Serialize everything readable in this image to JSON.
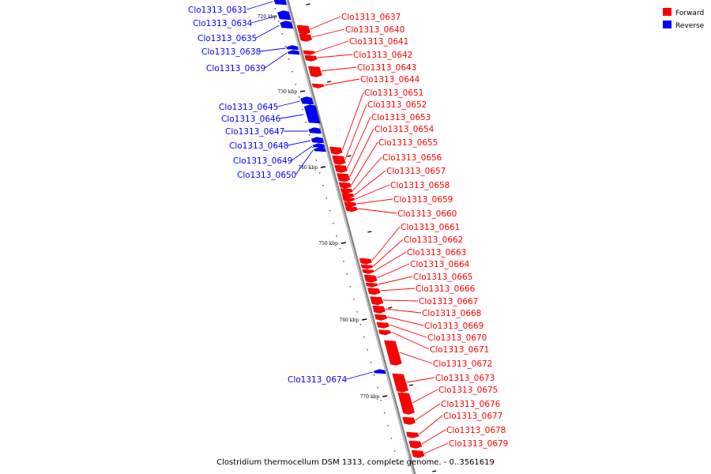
{
  "caption": "Clostridium thermocellum DSM 1313, complete genome. - 0..3561619",
  "legend": [
    {
      "label": "Forward",
      "color": "#ff0000"
    },
    {
      "label": "Reverse",
      "color": "#0000ff"
    }
  ],
  "colors": {
    "forward": "#ff0000",
    "reverse": "#0000ff",
    "backbone": "#888888"
  },
  "ticks": [
    "720 kbp",
    "730 kbp",
    "740 kbp",
    "750 kbp",
    "760 kbp",
    "770 kbp"
  ],
  "genes": [
    {
      "id": "Clo1313_0631",
      "strand": "reverse"
    },
    {
      "id": "Clo1313_0634",
      "strand": "reverse"
    },
    {
      "id": "Clo1313_0635",
      "strand": "reverse"
    },
    {
      "id": "Clo1313_0638",
      "strand": "reverse"
    },
    {
      "id": "Clo1313_0639",
      "strand": "reverse"
    },
    {
      "id": "Clo1313_0645",
      "strand": "reverse"
    },
    {
      "id": "Clo1313_0646",
      "strand": "reverse"
    },
    {
      "id": "Clo1313_0647",
      "strand": "reverse"
    },
    {
      "id": "Clo1313_0648",
      "strand": "reverse"
    },
    {
      "id": "Clo1313_0649",
      "strand": "reverse"
    },
    {
      "id": "Clo1313_0650",
      "strand": "reverse"
    },
    {
      "id": "Clo1313_0674",
      "strand": "reverse"
    },
    {
      "id": "Clo1313_0637",
      "strand": "forward"
    },
    {
      "id": "Clo1313_0640",
      "strand": "forward"
    },
    {
      "id": "Clo1313_0641",
      "strand": "forward"
    },
    {
      "id": "Clo1313_0642",
      "strand": "forward"
    },
    {
      "id": "Clo1313_0643",
      "strand": "forward"
    },
    {
      "id": "Clo1313_0644",
      "strand": "forward"
    },
    {
      "id": "Clo1313_0651",
      "strand": "forward"
    },
    {
      "id": "Clo1313_0652",
      "strand": "forward"
    },
    {
      "id": "Clo1313_0653",
      "strand": "forward"
    },
    {
      "id": "Clo1313_0654",
      "strand": "forward"
    },
    {
      "id": "Clo1313_0655",
      "strand": "forward"
    },
    {
      "id": "Clo1313_0656",
      "strand": "forward"
    },
    {
      "id": "Clo1313_0657",
      "strand": "forward"
    },
    {
      "id": "Clo1313_0658",
      "strand": "forward"
    },
    {
      "id": "Clo1313_0659",
      "strand": "forward"
    },
    {
      "id": "Clo1313_0660",
      "strand": "forward"
    },
    {
      "id": "Clo1313_0661",
      "strand": "forward"
    },
    {
      "id": "Clo1313_0662",
      "strand": "forward"
    },
    {
      "id": "Clo1313_0663",
      "strand": "forward"
    },
    {
      "id": "Clo1313_0664",
      "strand": "forward"
    },
    {
      "id": "Clo1313_0665",
      "strand": "forward"
    },
    {
      "id": "Clo1313_0666",
      "strand": "forward"
    },
    {
      "id": "Clo1313_0667",
      "strand": "forward"
    },
    {
      "id": "Clo1313_0668",
      "strand": "forward"
    },
    {
      "id": "Clo1313_0669",
      "strand": "forward"
    },
    {
      "id": "Clo1313_0670",
      "strand": "forward"
    },
    {
      "id": "Clo1313_0671",
      "strand": "forward"
    },
    {
      "id": "Clo1313_0672",
      "strand": "forward"
    },
    {
      "id": "Clo1313_0673",
      "strand": "forward"
    },
    {
      "id": "Clo1313_0675",
      "strand": "forward"
    },
    {
      "id": "Clo1313_0676",
      "strand": "forward"
    },
    {
      "id": "Clo1313_0677",
      "strand": "forward"
    },
    {
      "id": "Clo1313_0678",
      "strand": "forward"
    },
    {
      "id": "Clo1313_0679",
      "strand": "forward"
    }
  ]
}
